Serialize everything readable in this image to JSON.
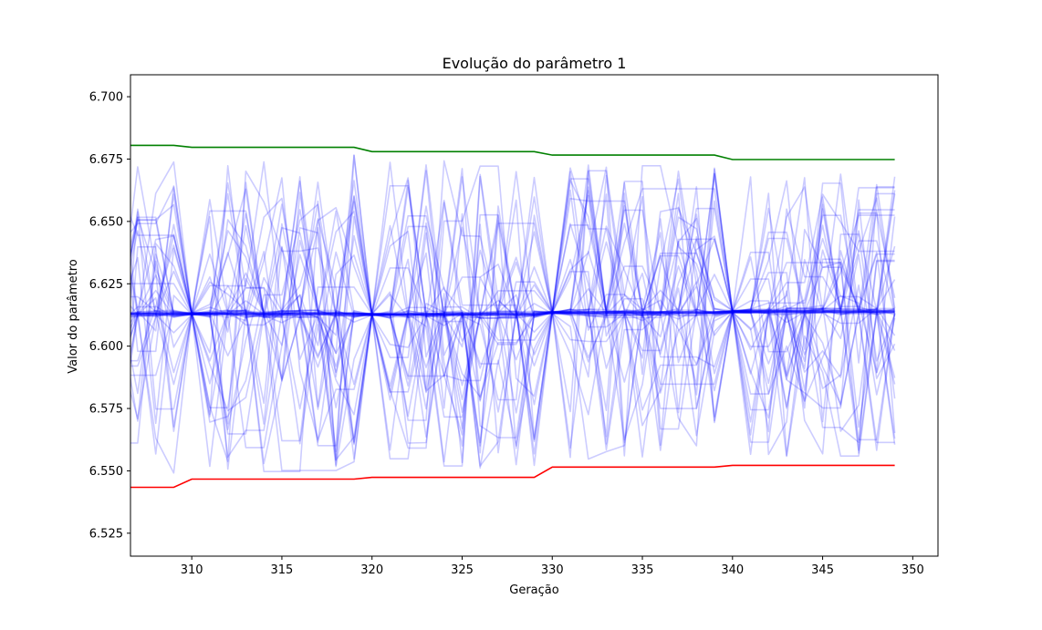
{
  "chart_data": {
    "type": "line",
    "title": "Evolução do parâmetro 1",
    "xlabel": "Geração",
    "ylabel": "Valor do parâmetro",
    "xlim": [
      306.6,
      351.4
    ],
    "ylim": [
      6.5158,
      6.7088
    ],
    "grid": false,
    "x_ticks": [
      310,
      315,
      320,
      325,
      330,
      335,
      340,
      345,
      350
    ],
    "y_ticks": [
      6.525,
      6.55,
      6.575,
      6.6,
      6.625,
      6.65,
      6.675,
      6.7
    ],
    "x_tick_labels": [
      "310",
      "315",
      "320",
      "325",
      "330",
      "335",
      "340",
      "345",
      "350"
    ],
    "y_tick_labels": [
      "6.525",
      "6.550",
      "6.575",
      "6.600",
      "6.625",
      "6.650",
      "6.675",
      "6.700"
    ],
    "upper_bound": {
      "color": "#008000",
      "x": [
        306,
        309,
        310,
        319,
        320,
        329,
        330,
        339,
        340,
        349
      ],
      "values": [
        6.6805,
        6.6805,
        6.6797,
        6.6797,
        6.678,
        6.678,
        6.6766,
        6.6766,
        6.6748,
        6.6748
      ]
    },
    "lower_bound": {
      "color": "#ff0000",
      "x": [
        306,
        309,
        310,
        319,
        320,
        329,
        330,
        339,
        340,
        349
      ],
      "values": [
        6.5434,
        6.5434,
        6.5467,
        6.5467,
        6.5474,
        6.5474,
        6.5515,
        6.5515,
        6.5522,
        6.5522
      ]
    },
    "population": {
      "color": "#0000ff",
      "opacity": 0.2,
      "x_start": 306,
      "x_end": 349,
      "x_reset": [
        310,
        320,
        330,
        340
      ],
      "individuals": 40,
      "convergence_values": [
        6.613,
        6.6127,
        6.6135,
        6.6138
      ],
      "description": "individual trajectories (faint blue) oscillating between the bounds and converging near 6.613 at each reset generation"
    }
  }
}
